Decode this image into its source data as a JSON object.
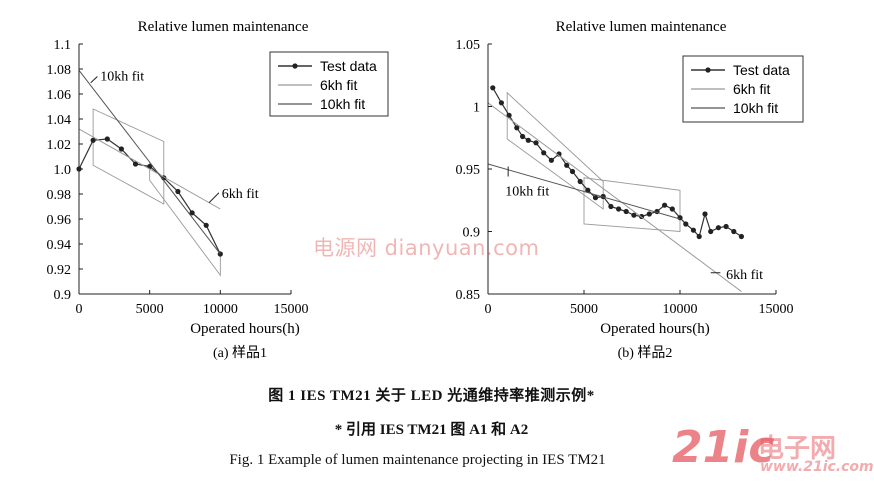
{
  "chart_data": [
    {
      "type": "line",
      "title": "Relative lumen maintenance",
      "xlabel": "Operated hours(h)",
      "ylabel": "",
      "xlim": [
        0,
        15000
      ],
      "ylim": [
        0.9,
        1.1
      ],
      "xticks": [
        0,
        5000,
        10000,
        15000
      ],
      "yticks": [
        0.9,
        0.92,
        0.94,
        0.96,
        0.98,
        1.0,
        1.02,
        1.04,
        1.06,
        1.08,
        1.1
      ],
      "ytick_labels": [
        "0.9",
        "0.92",
        "0.94",
        "0.96",
        "0.98",
        "1.0",
        "1.02",
        "1.04",
        "1.06",
        "1.08",
        "1.1"
      ],
      "sublabel": "(a) 样品1",
      "grid": false,
      "legend_position": "top-right",
      "legend": [
        "Test data",
        "6kh fit",
        "10kh fit"
      ],
      "series": [
        {
          "name": "Test data",
          "style": "line-marker",
          "x": [
            0,
            1000,
            2000,
            3000,
            4000,
            5000,
            6000,
            7000,
            8000,
            9000,
            10000
          ],
          "y": [
            1.0,
            1.023,
            1.024,
            1.016,
            1.004,
            1.002,
            0.993,
            0.982,
            0.965,
            0.955,
            0.932
          ]
        },
        {
          "name": "6kh fit",
          "style": "line",
          "x": [
            0,
            10000
          ],
          "y": [
            1.032,
            0.968
          ]
        },
        {
          "name": "10kh fit",
          "style": "line",
          "x": [
            0,
            10000
          ],
          "y": [
            1.079,
            0.932
          ]
        }
      ],
      "boxes": [
        {
          "x": [
            1000,
            6000
          ],
          "upper": [
            1.048,
            1.022
          ],
          "lower": [
            1.003,
            0.972
          ]
        },
        {
          "x": [
            5000,
            10000
          ],
          "upper": [
            1.005,
            0.932
          ],
          "lower": [
            0.991,
            0.915
          ]
        }
      ],
      "annotations": [
        {
          "text": "10kh fit",
          "pointer": [
            [
              830,
              1.069
            ],
            [
              1300,
              1.074
            ]
          ],
          "text_at": [
            1500,
            1.075
          ]
        },
        {
          "text": "6kh fit",
          "pointer": [
            [
              9200,
              0.973
            ],
            [
              9900,
              0.981
            ]
          ],
          "text_at": [
            10100,
            0.981
          ]
        }
      ]
    },
    {
      "type": "line",
      "title": "Relative lumen maintenance",
      "xlabel": "Operated hours(h)",
      "ylabel": "",
      "xlim": [
        0,
        15000
      ],
      "ylim": [
        0.85,
        1.05
      ],
      "xticks": [
        0,
        5000,
        10000,
        15000
      ],
      "yticks": [
        0.85,
        0.9,
        0.95,
        1.0,
        1.05
      ],
      "ytick_labels": [
        "0.85",
        "0.9",
        "0.95",
        "1",
        "1.05"
      ],
      "sublabel": "(b) 样品2",
      "grid": false,
      "legend_position": "top-right",
      "legend": [
        "Test data",
        "6kh fit",
        "10kh fit"
      ],
      "series": [
        {
          "name": "Test data",
          "style": "line-marker",
          "x": [
            250,
            700,
            1100,
            1500,
            1800,
            2100,
            2500,
            2900,
            3300,
            3700,
            4100,
            4400,
            4800,
            5200,
            5600,
            6000,
            6400,
            6800,
            7200,
            7600,
            8000,
            8400,
            8800,
            9200,
            9600,
            10000,
            10300,
            10700,
            11000,
            11300,
            11600,
            12000,
            12400,
            12800,
            13200
          ],
          "y": [
            1.015,
            1.003,
            0.993,
            0.983,
            0.976,
            0.973,
            0.971,
            0.963,
            0.957,
            0.962,
            0.953,
            0.948,
            0.94,
            0.933,
            0.927,
            0.928,
            0.92,
            0.918,
            0.916,
            0.913,
            0.912,
            0.914,
            0.916,
            0.921,
            0.918,
            0.911,
            0.906,
            0.901,
            0.896,
            0.914,
            0.9,
            0.903,
            0.904,
            0.9,
            0.896
          ]
        },
        {
          "name": "6kh fit",
          "style": "line",
          "x": [
            0,
            13200
          ],
          "y": [
            1.003,
            0.852
          ]
        },
        {
          "name": "10kh fit",
          "style": "line",
          "x": [
            0,
            10000
          ],
          "y": [
            0.954,
            0.91
          ]
        }
      ],
      "boxes": [
        {
          "x": [
            1000,
            6000
          ],
          "upper": [
            1.011,
            0.94
          ],
          "lower": [
            0.974,
            0.918
          ]
        },
        {
          "x": [
            5000,
            10000
          ],
          "upper": [
            0.943,
            0.933
          ],
          "lower": [
            0.906,
            0.9
          ]
        }
      ],
      "annotations": [
        {
          "text": "10kh fit",
          "pointer": [
            [
              1050,
              0.952
            ],
            [
              1050,
              0.944
            ]
          ],
          "text_at": [
            900,
            0.933
          ]
        },
        {
          "text": "6kh fit",
          "pointer": [
            [
              11600,
              0.867
            ],
            [
              12100,
              0.867
            ]
          ],
          "text_at": [
            12400,
            0.866
          ]
        }
      ]
    }
  ],
  "captions": {
    "cn": "图 1   IES TM21 关于 LED 光通维持率推测示例*",
    "cite": "* 引用 IES TM21 图 A1 和 A2",
    "en": "Fig. 1    Example of lumen maintenance projecting in IES TM21"
  },
  "watermarks": {
    "center": "电源网  dianyuan.com",
    "brand_21ic": "21ic",
    "brand_cn": "电子网",
    "brand_url": "www.21ic.com"
  },
  "colors": {
    "text": "#111111",
    "axis": "#222222",
    "data_line": "#333333",
    "fit_line": "#555555",
    "box_line": "#999999"
  }
}
